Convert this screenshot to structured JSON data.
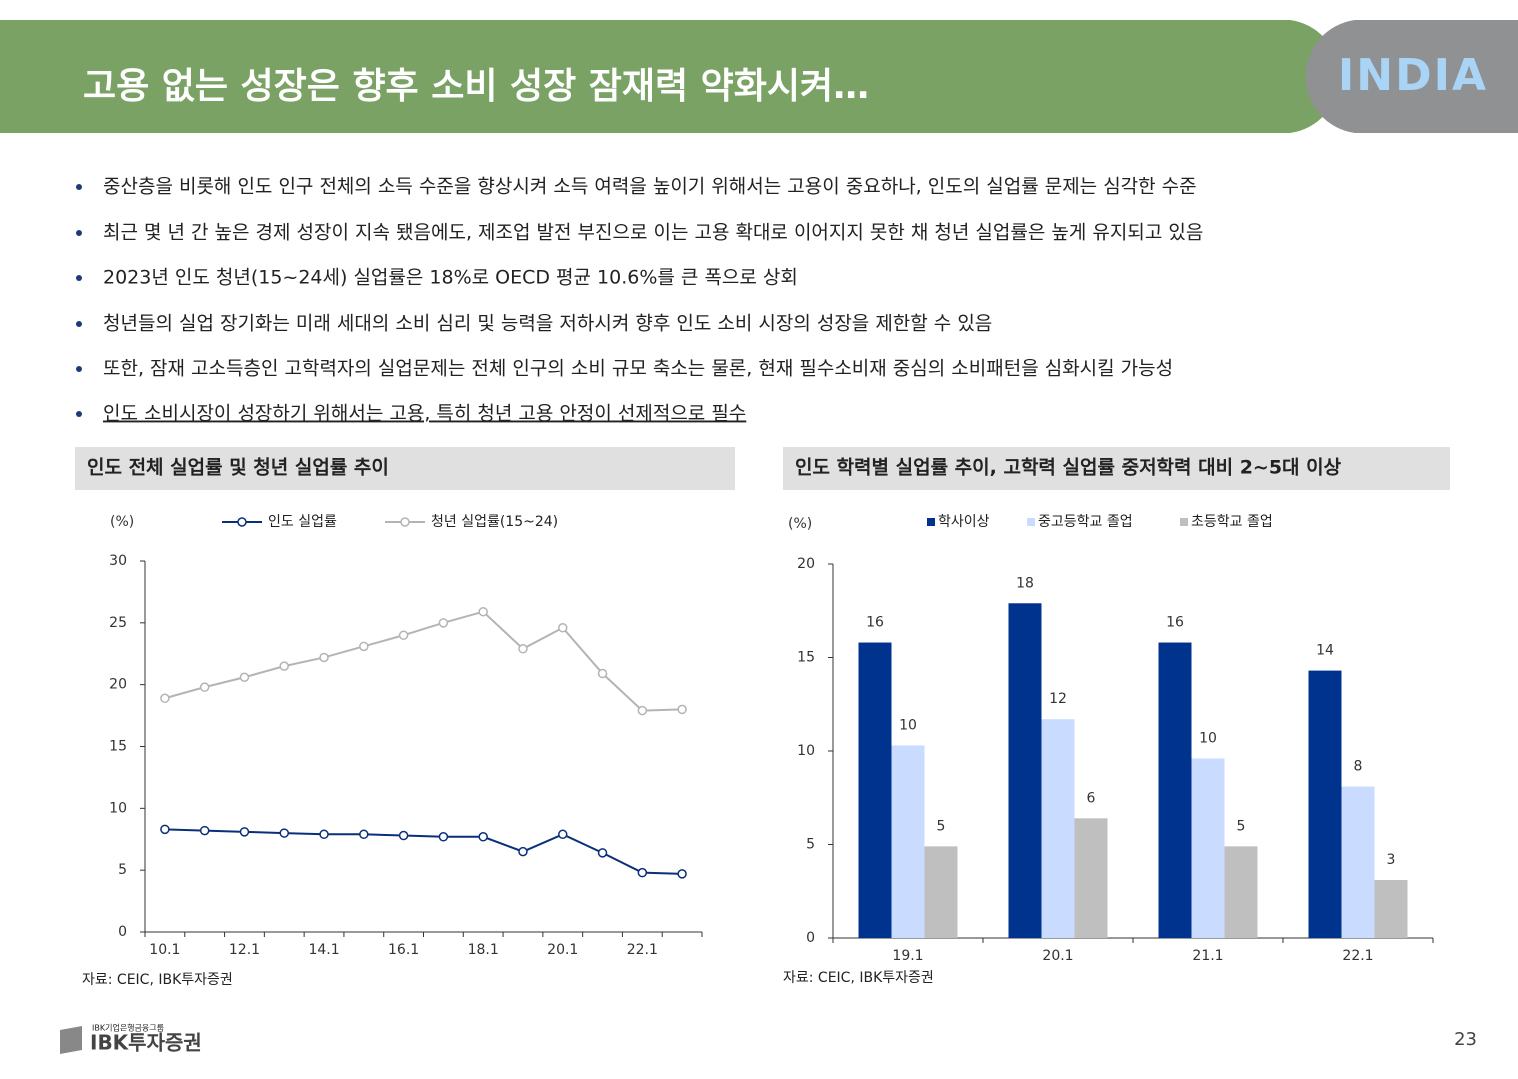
{
  "header": {
    "title": "고용 없는 성장은 향후 소비 성장 잠재력 약화시켜…",
    "logo": "INDIA"
  },
  "bullets": [
    "중산층을 비롯해 인도 인구 전체의 소득 수준을 향상시켜 소득 여력을 높이기 위해서는 고용이 중요하나, 인도의 실업률 문제는 심각한 수준",
    "최근 몇 년 간 높은 경제 성장이 지속 됐음에도, 제조업 발전 부진으로 이는 고용 확대로 이어지지 못한 채 청년 실업률은 높게 유지되고 있음",
    "2023년 인도 청년(15~24세) 실업률은 18%로 OECD 평균 10.6%를 큰 폭으로 상회",
    "청년들의 실업 장기화는 미래 세대의 소비 심리 및 능력을 저하시켜 향후 인도 소비 시장의 성장을 제한할 수 있음",
    "또한, 잠재 고소득층인 고학력자의 실업문제는 전체 인구의 소비 규모 축소는 물론, 현재 필수소비재 중심의 소비패턴을 심화시킬 가능성",
    "인도 소비시장이 성장하기 위해서는 고용, 특히 청년 고용 안정이 선제적으로 필수"
  ],
  "chart_data": [
    {
      "type": "line",
      "title": "인도 전체 실업률 및 청년 실업률 추이",
      "y_label": "(%)",
      "source": "자료: CEIC, IBK투자증권",
      "categories": [
        "10.1",
        null,
        "12.1",
        null,
        "14.1",
        null,
        "16.1",
        null,
        "18.1",
        null,
        "20.1",
        null,
        "22.1",
        null
      ],
      "series": [
        {
          "name": "인도 실업률",
          "color": "#0a2f7a",
          "values": [
            8.3,
            8.2,
            8.1,
            8.0,
            7.9,
            7.9,
            7.8,
            7.7,
            7.7,
            6.5,
            7.9,
            6.4,
            4.8,
            4.7
          ]
        },
        {
          "name": "청년 실업률(15~24)",
          "color": "#b4b4b4",
          "values": [
            18.9,
            19.8,
            20.6,
            21.5,
            22.2,
            23.1,
            24.0,
            25.0,
            25.9,
            22.9,
            24.6,
            20.9,
            17.9,
            18.0
          ]
        }
      ],
      "ylim": [
        0,
        30
      ],
      "yticks": [
        0,
        5,
        10,
        15,
        20,
        25,
        30
      ]
    },
    {
      "type": "bar",
      "title": "인도 학력별 실업률 추이, 고학력 실업률 중저학력 대비 2~5대 이상",
      "y_label": "(%)",
      "source": "자료: CEIC, IBK투자증권",
      "categories": [
        "19.1",
        "20.1",
        "21.1",
        "22.1"
      ],
      "series": [
        {
          "name": "학사이상",
          "color": "#00338d",
          "values": [
            15.8,
            17.9,
            15.8,
            14.3
          ],
          "value_labels": [
            "16",
            "18",
            "16",
            "14"
          ]
        },
        {
          "name": "중고등학교 졸업",
          "color": "#c9dcff",
          "values": [
            10.3,
            11.7,
            9.6,
            8.1
          ],
          "value_labels": [
            "10",
            "12",
            "10",
            "8"
          ]
        },
        {
          "name": "초등학교 졸업",
          "color": "#bfbfbf",
          "values": [
            4.9,
            6.4,
            4.9,
            3.1
          ],
          "value_labels": [
            "5",
            "6",
            "5",
            "3"
          ]
        }
      ],
      "ylim": [
        0,
        20
      ],
      "yticks": [
        0,
        5,
        10,
        15,
        20
      ]
    }
  ],
  "footer": {
    "group": "IBK기업은행금융그룹",
    "brand": "IBK투자증권",
    "page": "23"
  }
}
